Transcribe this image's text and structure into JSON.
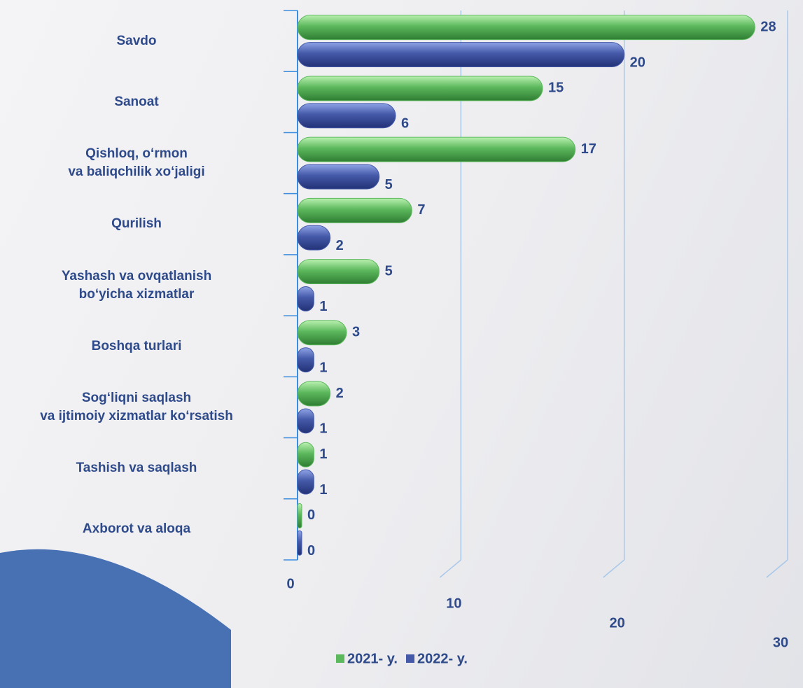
{
  "chart_data": {
    "type": "barh",
    "categories": [
      "Savdo",
      "Sanoat",
      "Qishloq, o‘rmon\nva baliqchilik xo‘jaligi",
      "Qurilish",
      "Yashash va ovqatlanish\nbo‘yicha xizmatlar",
      "Boshqa turlari",
      "Sog‘liqni saqlash\nva ijtimoiy xizmatlar ko‘rsatish",
      "Tashish va saqlash",
      "Axborot va aloqa"
    ],
    "series": [
      {
        "name": "2021- y.",
        "color": "#5cb85c",
        "values": [
          28,
          15,
          17,
          7,
          5,
          3,
          2,
          1,
          0
        ]
      },
      {
        "name": "2022- y.",
        "color": "#4459a8",
        "values": [
          20,
          6,
          5,
          2,
          1,
          1,
          1,
          1,
          0
        ]
      }
    ],
    "xlim": [
      0,
      30
    ],
    "xticks": [
      0,
      10,
      20,
      30
    ],
    "grid": true,
    "legend": "bottom"
  }
}
